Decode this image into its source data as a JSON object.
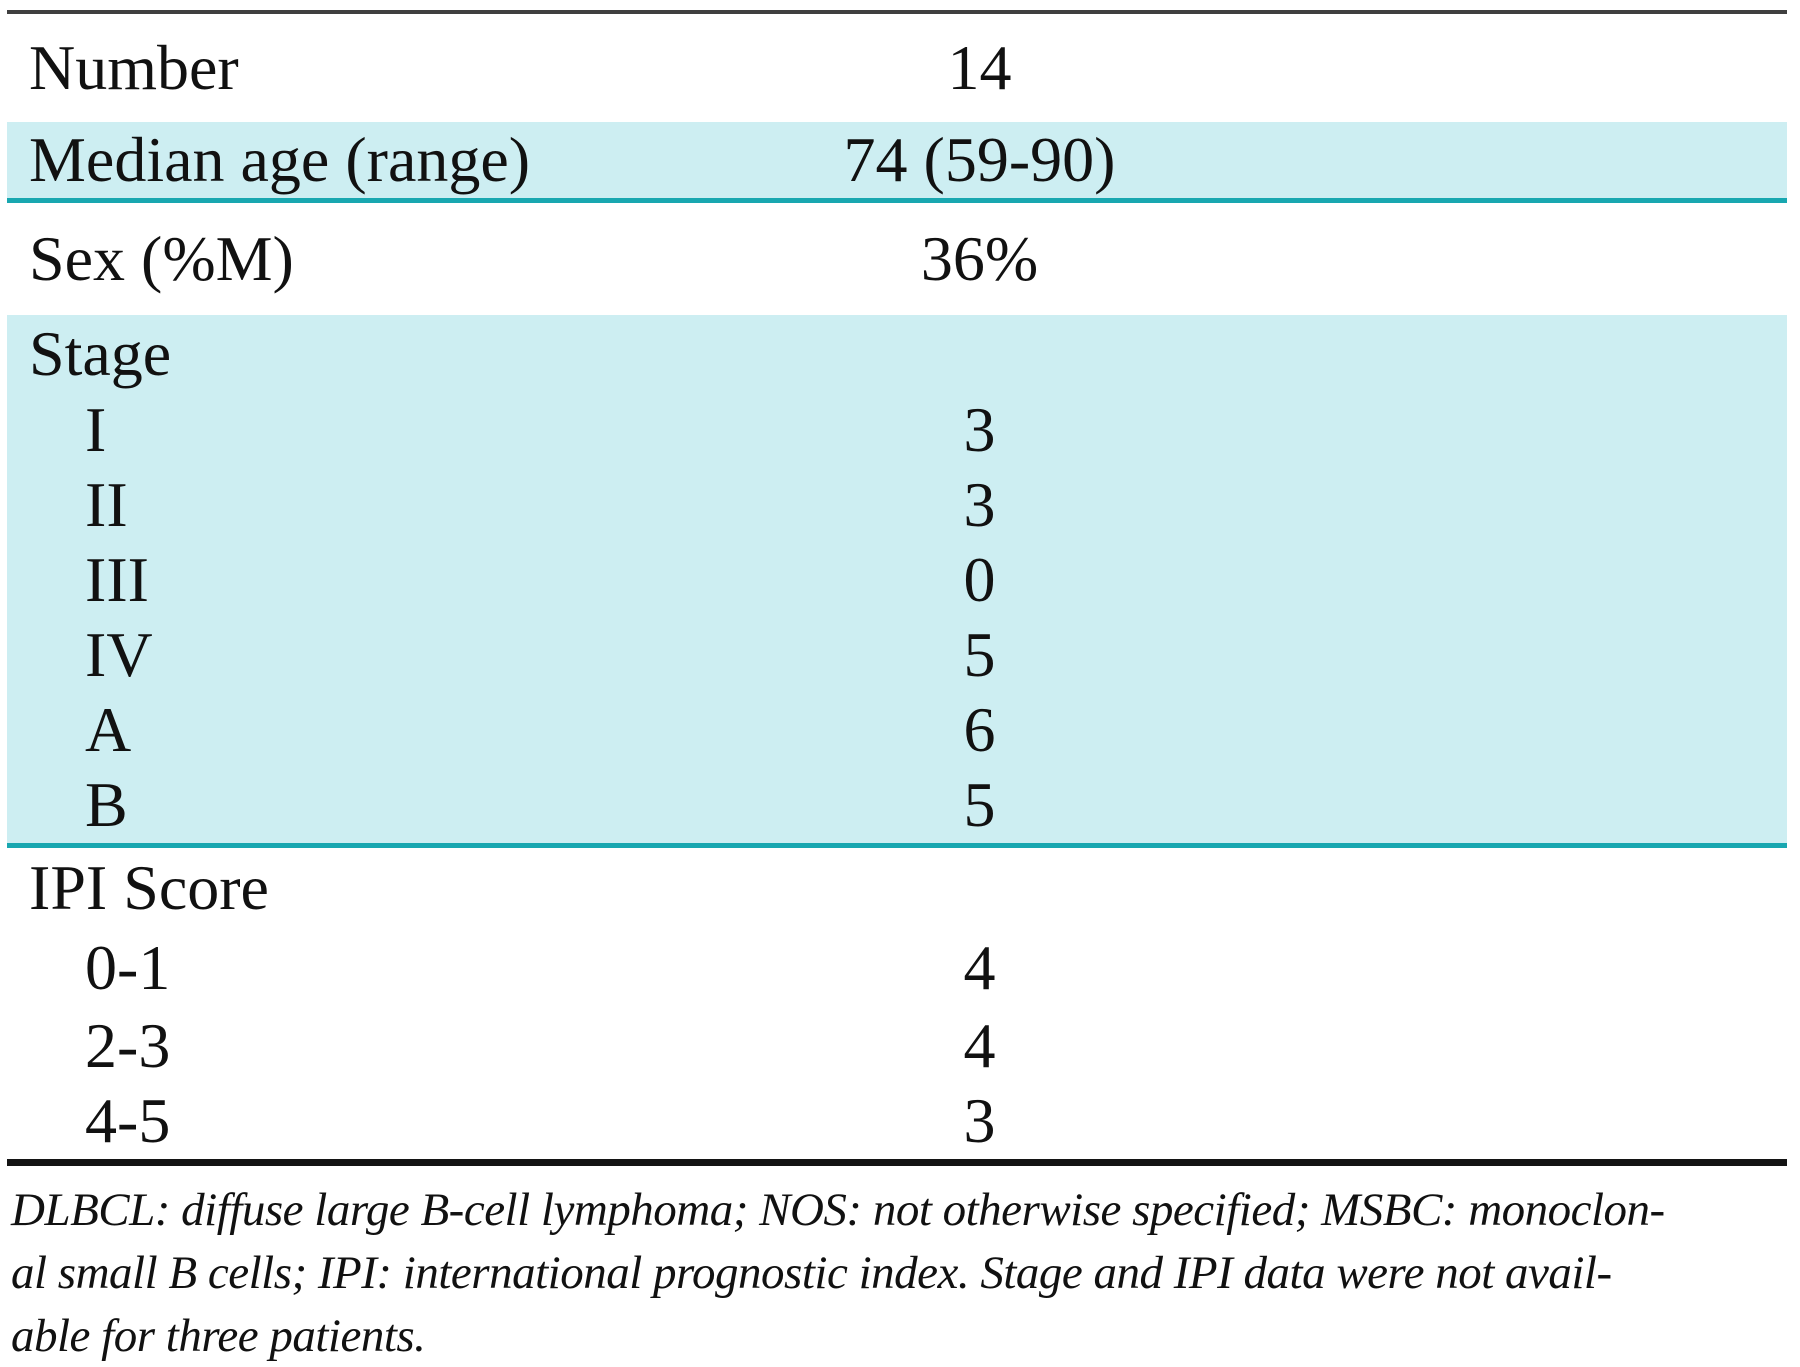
{
  "table": {
    "rows": [
      {
        "label": "Number",
        "value": "14"
      },
      {
        "label": "Median age (range)",
        "value": "74 (59-90)"
      },
      {
        "label": "Sex (%M)",
        "value": "36%"
      },
      {
        "label": "Stage",
        "value": ""
      },
      {
        "label": "I",
        "value": "3"
      },
      {
        "label": "II",
        "value": "3"
      },
      {
        "label": "III",
        "value": "0"
      },
      {
        "label": "IV",
        "value": "5"
      },
      {
        "label": "A",
        "value": "6"
      },
      {
        "label": "B",
        "value": "5"
      },
      {
        "label": "IPI Score",
        "value": ""
      },
      {
        "label": "0-1",
        "value": "4"
      },
      {
        "label": "2-3",
        "value": "4"
      },
      {
        "label": "4-5",
        "value": "3"
      }
    ],
    "footnote_lines": [
      "DLBCL: diffuse large B-cell lymphoma; NOS: not otherwise specified; MSBC: monoclon-",
      "al small B cells; IPI: international prognostic index. Stage and IPI data were not avail-",
      "able for three patients."
    ]
  },
  "colors": {
    "row_highlight": "#cdeef2",
    "teal_rule": "#18a7b0",
    "top_rule": "#3f3f3f",
    "bottom_rule": "#141414",
    "text": "#111111"
  }
}
